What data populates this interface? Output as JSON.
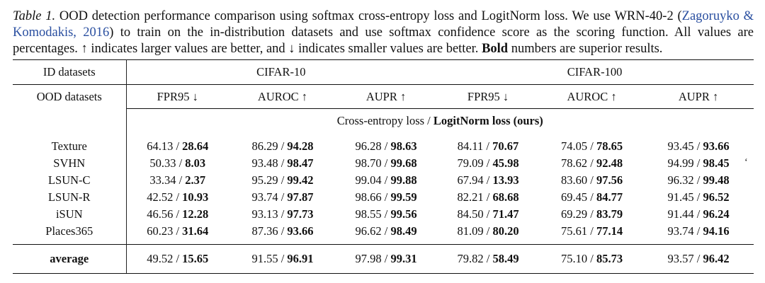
{
  "caption": {
    "label": "Table 1.",
    "text_before_link": " OOD detection performance comparison using softmax cross-entropy loss and LogitNorm loss. We use WRN-40-2 (",
    "link_text": "Zagoruyko & Komodakis, 2016",
    "text_after_link": ") to train on the in-distribution datasets and use softmax confidence score as the scoring function. All values are percentages. ↑ indicates larger values are better, and ↓ indicates smaller values are better. ",
    "bold_text": "Bold",
    "text_end": " numbers are superior results."
  },
  "table": {
    "id_label": "ID datasets",
    "ood_label": "OOD datasets",
    "groups": [
      "CIFAR-10",
      "CIFAR-100"
    ],
    "metrics": [
      "FPR95 ↓",
      "AUROC ↑",
      "AUPR ↑",
      "FPR95 ↓",
      "AUROC ↑",
      "AUPR ↑"
    ],
    "loss_plain": "Cross-entropy loss / ",
    "loss_bold": "LogitNorm loss (ours)",
    "rows": [
      {
        "name": "Texture",
        "cells": [
          [
            "64.13 / ",
            "28.64"
          ],
          [
            "86.29 / ",
            "94.28"
          ],
          [
            "96.28 / ",
            "98.63"
          ],
          [
            "84.11 / ",
            "70.67"
          ],
          [
            "74.05 / ",
            "78.65"
          ],
          [
            "93.45 / ",
            "93.66"
          ]
        ]
      },
      {
        "name": "SVHN",
        "cells": [
          [
            "50.33 / ",
            "8.03"
          ],
          [
            "93.48 / ",
            "98.47"
          ],
          [
            "98.70 / ",
            "99.68"
          ],
          [
            "79.09 / ",
            "45.98"
          ],
          [
            "78.62 / ",
            "92.48"
          ],
          [
            "94.99 / ",
            "98.45"
          ]
        ]
      },
      {
        "name": "LSUN-C",
        "cells": [
          [
            "33.34 / ",
            "2.37"
          ],
          [
            "95.29 / ",
            "99.42"
          ],
          [
            "99.04 / ",
            "99.88"
          ],
          [
            "67.94 / ",
            "13.93"
          ],
          [
            "83.60 / ",
            "97.56"
          ],
          [
            "96.32 / ",
            "99.48"
          ]
        ]
      },
      {
        "name": "LSUN-R",
        "cells": [
          [
            "42.52 / ",
            "10.93"
          ],
          [
            "93.74 / ",
            "97.87"
          ],
          [
            "98.66 / ",
            "99.59"
          ],
          [
            "82.21 / ",
            "68.68"
          ],
          [
            "69.45 / ",
            "84.77"
          ],
          [
            "91.45 / ",
            "96.52"
          ]
        ]
      },
      {
        "name": "iSUN",
        "cells": [
          [
            "46.56 / ",
            "12.28"
          ],
          [
            "93.13 / ",
            "97.73"
          ],
          [
            "98.55 / ",
            "99.56"
          ],
          [
            "84.50 / ",
            "71.47"
          ],
          [
            "69.29 / ",
            "83.79"
          ],
          [
            "91.44 / ",
            "96.24"
          ]
        ]
      },
      {
        "name": "Places365",
        "cells": [
          [
            "60.23 / ",
            "31.64"
          ],
          [
            "87.36 / ",
            "93.66"
          ],
          [
            "96.62 / ",
            "98.49"
          ],
          [
            "81.09 / ",
            "80.20"
          ],
          [
            "75.61 / ",
            "77.14"
          ],
          [
            "93.74 / ",
            "94.16"
          ]
        ]
      }
    ],
    "average": {
      "name": "average",
      "cells": [
        [
          "49.52 / ",
          "15.65"
        ],
        [
          "91.55 / ",
          "96.91"
        ],
        [
          "97.98 / ",
          "99.31"
        ],
        [
          "79.82 / ",
          "58.49"
        ],
        [
          "75.10 / ",
          "85.73"
        ],
        [
          "93.57 / ",
          "96.42"
        ]
      ]
    }
  },
  "stray_mark": "‘",
  "colors": {
    "link": "#2a4fa0",
    "text": "#111111"
  }
}
